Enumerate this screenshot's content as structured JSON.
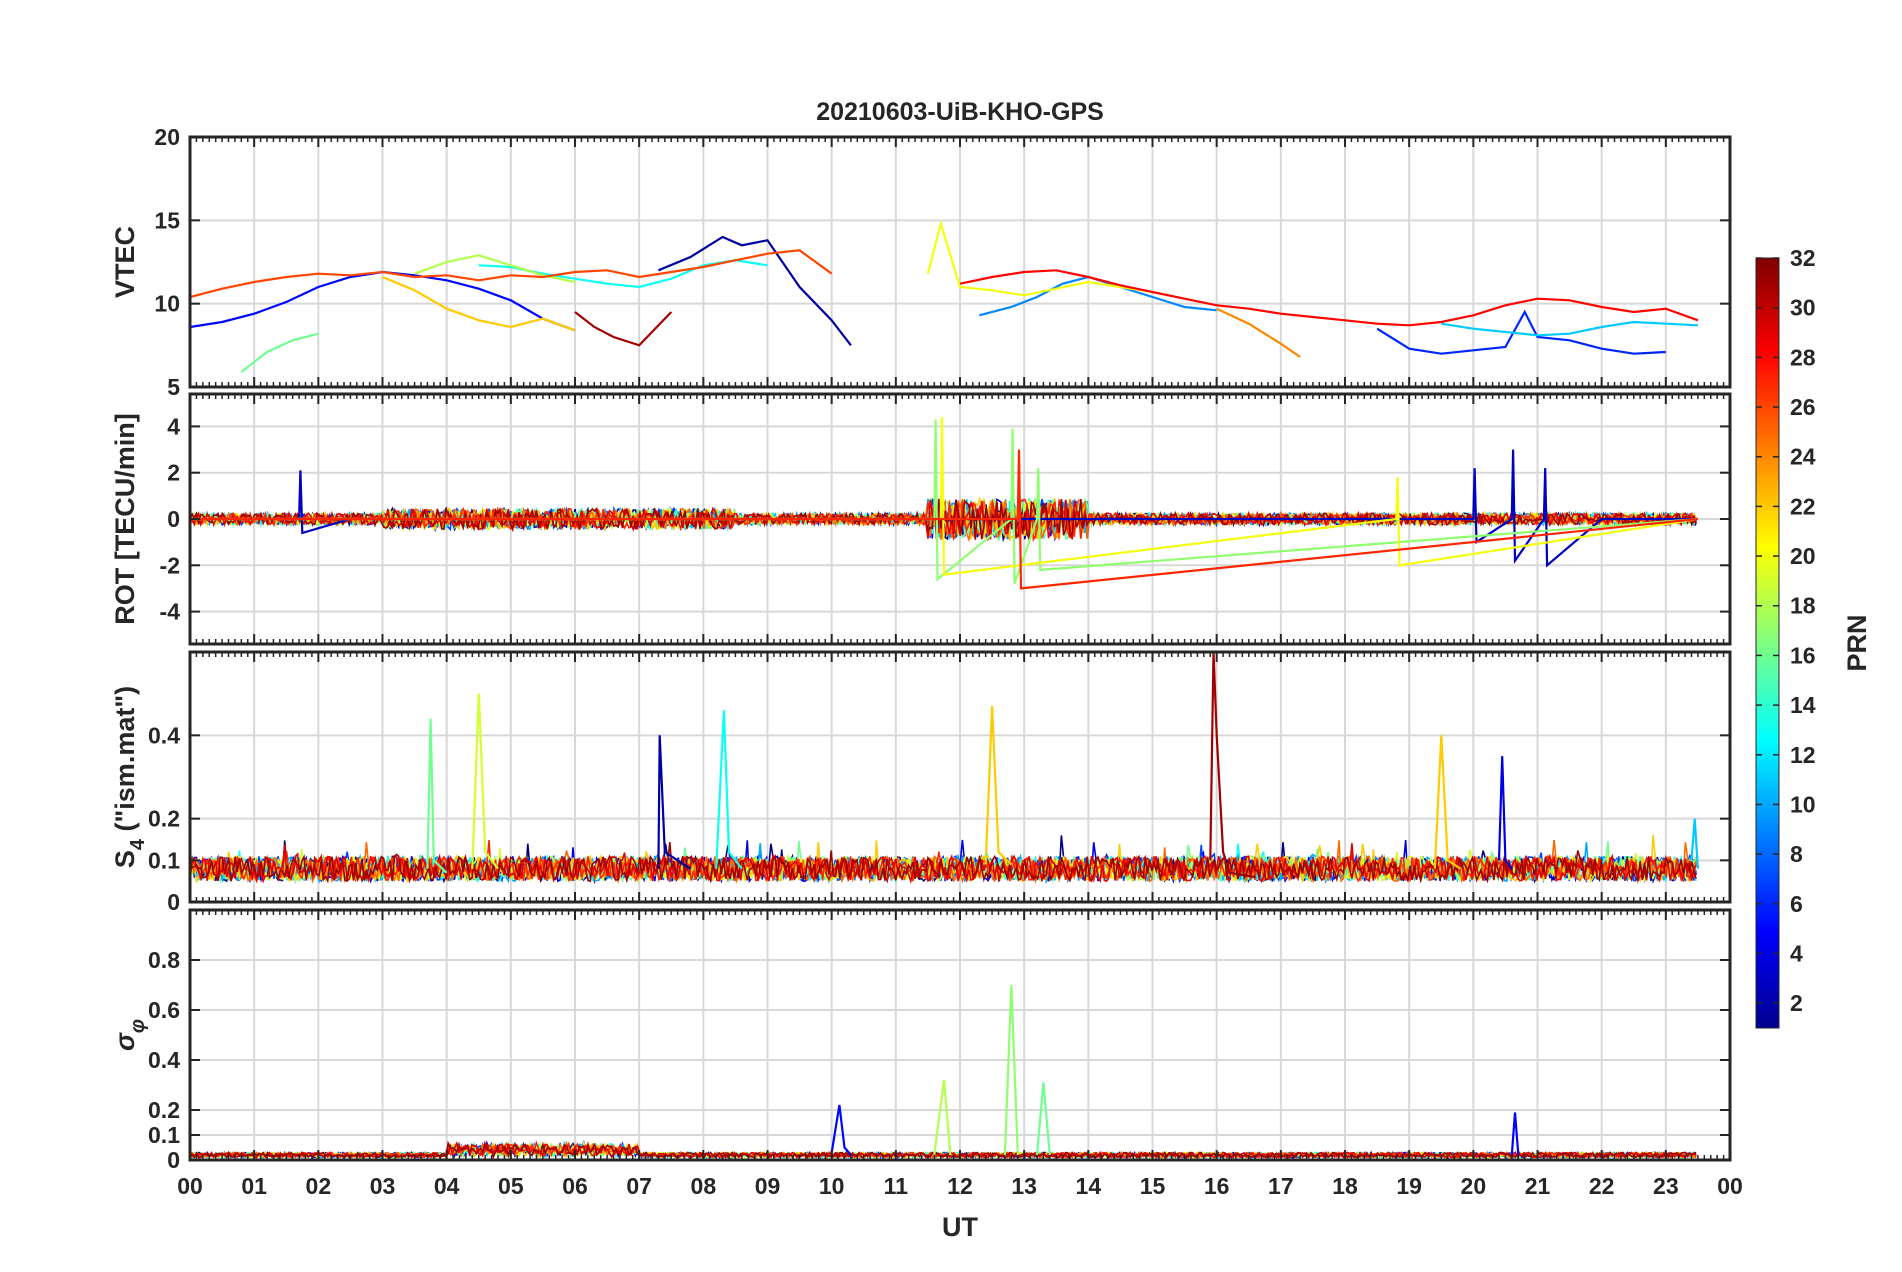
{
  "chart_data": {
    "type": "line",
    "title": "20210603-UiB-KHO-GPS",
    "xlabel": "UT",
    "xlim": [
      0,
      24
    ],
    "x_tick_labels": [
      "00",
      "01",
      "02",
      "03",
      "04",
      "05",
      "06",
      "07",
      "08",
      "09",
      "10",
      "11",
      "12",
      "13",
      "14",
      "15",
      "16",
      "17",
      "18",
      "19",
      "20",
      "21",
      "22",
      "23",
      "00"
    ],
    "grid": true,
    "colorbar": {
      "label": "PRN",
      "range": [
        1,
        32
      ],
      "tick_labels": [
        "2",
        "4",
        "6",
        "8",
        "10",
        "12",
        "14",
        "16",
        "18",
        "20",
        "22",
        "24",
        "26",
        "28",
        "30",
        "32"
      ],
      "colormap": "jet"
    },
    "panels": [
      {
        "name": "vtec",
        "ylabel": "VTEC",
        "ylim": [
          5,
          20
        ],
        "y_ticks": [
          5,
          10,
          15,
          20
        ],
        "y_tick_labels": [
          "5",
          "10",
          "15",
          "20"
        ],
        "series": [
          {
            "prn": 2,
            "x": [
              7.3,
              7.8,
              8.3,
              8.6,
              9.0,
              9.5,
              10.0,
              10.3
            ],
            "y": [
              12.0,
              12.8,
              14.0,
              13.5,
              13.8,
              11.0,
              9.0,
              7.5
            ]
          },
          {
            "prn": 5,
            "x": [
              0,
              0.5,
              1.0,
              1.5,
              2.0,
              2.5,
              3.0,
              3.5,
              4.0,
              4.5,
              5.0,
              5.5,
              6.0
            ],
            "y": [
              8.6,
              8.9,
              9.4,
              10.1,
              11.0,
              11.6,
              11.9,
              11.7,
              11.4,
              10.9,
              10.2,
              9.1,
              8.4
            ]
          },
          {
            "prn": 6,
            "x": [
              18.5,
              19.0,
              19.5,
              20.0,
              20.5,
              20.8,
              21.0,
              21.5,
              22.0,
              22.5,
              23.0
            ],
            "y": [
              8.5,
              7.3,
              7.0,
              7.2,
              7.4,
              9.5,
              8.0,
              7.8,
              7.3,
              7.0,
              7.1
            ]
          },
          {
            "prn": 9,
            "x": [
              12.3,
              12.8,
              13.2,
              13.6,
              14.0,
              14.5,
              15.0,
              15.5,
              16.0
            ],
            "y": [
              9.3,
              9.8,
              10.4,
              11.2,
              11.6,
              11.0,
              10.4,
              9.8,
              9.6
            ]
          },
          {
            "prn": 11,
            "x": [
              19.5,
              20.0,
              20.5,
              21.0,
              21.5,
              22.0,
              22.5,
              23.0,
              23.5
            ],
            "y": [
              8.8,
              8.5,
              8.3,
              8.1,
              8.2,
              8.6,
              8.9,
              8.8,
              8.7
            ]
          },
          {
            "prn": 13,
            "x": [
              4.5,
              5.0,
              5.5,
              6.0,
              6.5,
              7.0,
              7.5,
              8.0,
              8.5,
              9.0
            ],
            "y": [
              12.3,
              12.2,
              11.8,
              11.5,
              11.2,
              11.0,
              11.5,
              12.3,
              12.6,
              12.3
            ]
          },
          {
            "prn": 16,
            "x": [
              0.8,
              1.2,
              1.6,
              2.0
            ],
            "y": [
              5.9,
              7.1,
              7.8,
              8.2
            ]
          },
          {
            "prn": 18,
            "x": [
              3.5,
              4.0,
              4.5,
              5.0,
              5.5,
              6.0
            ],
            "y": [
              11.8,
              12.5,
              12.9,
              12.3,
              11.7,
              11.3
            ]
          },
          {
            "prn": 20,
            "x": [
              11.5,
              11.7,
              12.0,
              12.5,
              13.0,
              13.5,
              14.0,
              14.5,
              15.0
            ],
            "y": [
              11.8,
              14.8,
              11.0,
              10.8,
              10.5,
              10.9,
              11.3,
              11.0,
              10.7
            ]
          },
          {
            "prn": 22,
            "x": [
              3.0,
              3.5,
              4.0,
              4.5,
              5.0,
              5.5,
              6.0
            ],
            "y": [
              11.6,
              10.8,
              9.7,
              9.0,
              8.6,
              9.1,
              8.4
            ]
          },
          {
            "prn": 24,
            "x": [
              16.0,
              16.5,
              17.0,
              17.3
            ],
            "y": [
              9.7,
              8.8,
              7.6,
              6.8
            ]
          },
          {
            "prn": 26,
            "x": [
              0,
              0.5,
              1.0,
              1.5,
              2.0,
              2.5,
              3.0,
              3.5,
              4.0,
              4.5,
              5.0,
              5.5,
              6.0,
              6.5,
              7.0,
              7.5,
              8.0,
              8.5,
              9.0,
              9.5,
              10.0
            ],
            "y": [
              10.4,
              10.9,
              11.3,
              11.6,
              11.8,
              11.7,
              11.9,
              11.6,
              11.7,
              11.4,
              11.7,
              11.6,
              11.9,
              12.0,
              11.6,
              11.9,
              12.2,
              12.6,
              13.0,
              13.2,
              11.8
            ]
          },
          {
            "prn": 28,
            "x": [
              12.0,
              12.5,
              13.0,
              13.5,
              14.0,
              14.5,
              15.0,
              15.5,
              16.0,
              16.5,
              17.0,
              17.5,
              18.0,
              18.5,
              19.0,
              19.5,
              20.0,
              20.5,
              21.0,
              21.5,
              22.0,
              22.5,
              23.0,
              23.5
            ],
            "y": [
              11.2,
              11.6,
              11.9,
              12.0,
              11.6,
              11.1,
              10.7,
              10.3,
              9.9,
              9.7,
              9.4,
              9.2,
              9.0,
              8.8,
              8.7,
              8.9,
              9.3,
              9.9,
              10.3,
              10.2,
              9.8,
              9.5,
              9.7,
              9.0
            ]
          },
          {
            "prn": 31,
            "x": [
              6.0,
              6.3,
              6.6,
              7.0,
              7.2,
              7.5
            ],
            "y": [
              9.5,
              8.6,
              8.0,
              7.5,
              8.3,
              9.5
            ]
          }
        ]
      },
      {
        "name": "rot",
        "ylabel": "ROT [TECU/min]",
        "ylim": [
          -5.4,
          5.4
        ],
        "y_ticks": [
          -4,
          -2,
          0,
          2,
          4
        ],
        "y_tick_labels": [
          "-4",
          "-2",
          "0",
          "2",
          "4"
        ],
        "series": [
          {
            "prn": 3,
            "x": [
              0,
              1.7,
              1.72,
              1.75,
              2.5,
              6.0,
              10.0,
              12.0,
              19.0,
              20.0,
              20.02,
              20.05,
              20.6,
              20.62,
              20.65,
              21.1,
              21.12,
              21.15,
              22.0,
              23.5
            ],
            "y": [
              0,
              0,
              2.1,
              -0.6,
              0,
              0,
              0,
              0,
              0,
              0,
              2.2,
              -1.0,
              0,
              3.0,
              -1.8,
              0,
              2.2,
              -2.0,
              0,
              0
            ]
          },
          {
            "prn": 17,
            "x": [
              0,
              11.6,
              11.62,
              11.65,
              12.8,
              12.82,
              12.85,
              13.2,
              13.22,
              13.25,
              23.5
            ],
            "y": [
              0,
              0,
              4.3,
              -2.6,
              0,
              3.9,
              -2.8,
              0,
              2.2,
              -2.2,
              0
            ]
          },
          {
            "prn": 20,
            "x": [
              0,
              11.7,
              11.72,
              11.75,
              18.8,
              18.82,
              18.85,
              23.5
            ],
            "y": [
              0,
              0,
              4.4,
              -2.4,
              0,
              1.8,
              -2.0,
              0
            ]
          },
          {
            "prn": 27,
            "x": [
              0,
              12.9,
              12.92,
              12.95,
              23.5
            ],
            "y": [
              0,
              0,
              3.0,
              -3.0,
              0
            ]
          }
        ]
      },
      {
        "name": "s4",
        "ylabel": "S4 (\"ism.mat\")",
        "ylim": [
          0,
          0.6
        ],
        "y_ticks": [
          0,
          0.1,
          0.2,
          0.4
        ],
        "y_tick_labels": [
          "0",
          "0.1",
          "0.2",
          "0.4"
        ],
        "series": [
          {
            "prn": 2,
            "x": [
              7.3,
              7.32,
              7.4,
              7.8
            ],
            "y": [
              0.08,
              0.4,
              0.12,
              0.08
            ]
          },
          {
            "prn": 4,
            "x": [
              20.4,
              20.45,
              20.5,
              20.6
            ],
            "y": [
              0.1,
              0.35,
              0.1,
              0.08
            ]
          },
          {
            "prn": 11,
            "x": [
              23.4,
              23.45,
              23.5
            ],
            "y": [
              0.1,
              0.2,
              0.08
            ]
          },
          {
            "prn": 13,
            "x": [
              8.2,
              8.32,
              8.4,
              8.6
            ],
            "y": [
              0.08,
              0.46,
              0.12,
              0.08
            ]
          },
          {
            "prn": 16,
            "x": [
              3.7,
              3.75,
              3.8,
              4.0
            ],
            "y": [
              0.08,
              0.44,
              0.1,
              0.07
            ]
          },
          {
            "prn": 19,
            "x": [
              4.4,
              4.5,
              4.6,
              4.8
            ],
            "y": [
              0.08,
              0.5,
              0.12,
              0.08
            ]
          },
          {
            "prn": 22,
            "x": [
              12.4,
              12.5,
              12.6,
              12.8
            ],
            "y": [
              0.09,
              0.47,
              0.12,
              0.09
            ]
          },
          {
            "prn": 22,
            "x": [
              19.4,
              19.5,
              19.6,
              19.8
            ],
            "y": [
              0.08,
              0.4,
              0.1,
              0.08
            ]
          },
          {
            "prn": 31,
            "x": [
              15.9,
              15.95,
              16.0,
              16.1,
              16.2,
              16.6
            ],
            "y": [
              0.1,
              0.6,
              0.4,
              0.12,
              0.07,
              0.06
            ]
          }
        ]
      },
      {
        "name": "sigma_phi",
        "ylabel": "σφ",
        "ylim": [
          0,
          1.0
        ],
        "y_ticks": [
          0,
          0.1,
          0.2,
          0.4,
          0.6,
          0.8
        ],
        "y_tick_labels": [
          "0",
          "0.1",
          "0.2",
          "0.4",
          "0.6",
          "0.8"
        ],
        "series": [
          {
            "prn": 5,
            "x": [
              10.0,
              10.12,
              10.2,
              10.3
            ],
            "y": [
              0.03,
              0.22,
              0.05,
              0.02
            ]
          },
          {
            "prn": 5,
            "x": [
              20.6,
              20.65,
              20.7
            ],
            "y": [
              0.02,
              0.19,
              0.02
            ]
          },
          {
            "prn": 17,
            "x": [
              12.7,
              12.8,
              12.9
            ],
            "y": [
              0.02,
              0.7,
              0.02
            ]
          },
          {
            "prn": 18,
            "x": [
              11.6,
              11.75,
              11.85
            ],
            "y": [
              0.02,
              0.32,
              0.02
            ]
          },
          {
            "prn": 16,
            "x": [
              13.2,
              13.3,
              13.4
            ],
            "y": [
              0.02,
              0.31,
              0.02
            ]
          }
        ]
      }
    ]
  }
}
